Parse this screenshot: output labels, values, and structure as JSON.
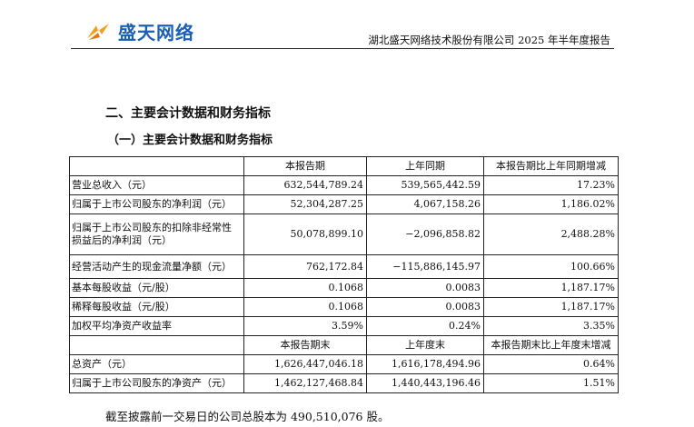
{
  "header": {
    "logo_text": "盛天网络",
    "report_title": "湖北盛天网络技术股份有限公司 2025 年半年度报告"
  },
  "section_title": "二、主要会计数据和财务指标",
  "subsection_title": "（一）主要会计数据和财务指标",
  "table": {
    "header1": [
      "",
      "本报告期",
      "上年同期",
      "本报告期比上年同期增减"
    ],
    "rows1": [
      {
        "label": "营业总收入（元）",
        "current": "632,544,789.24",
        "prior": "539,565,442.59",
        "change": "17.23%"
      },
      {
        "label": "归属于上市公司股东的净利润（元）",
        "current": "52,304,287.25",
        "prior": "4,067,158.26",
        "change": "1,186.02%"
      },
      {
        "label": "归属于上市公司股东的扣除非经常性损益后的净利润（元）",
        "current": "50,078,899.10",
        "prior": "−2,096,858.82",
        "change": "2,488.28%"
      },
      {
        "label": "经营活动产生的现金流量净额（元）",
        "current": "762,172.84",
        "prior": "−115,886,145.97",
        "change": "100.66%"
      },
      {
        "label": "基本每股收益（元/股）",
        "current": "0.1068",
        "prior": "0.0083",
        "change": "1,187.17%"
      },
      {
        "label": "稀释每股收益（元/股）",
        "current": "0.1068",
        "prior": "0.0083",
        "change": "1,187.17%"
      },
      {
        "label": "加权平均净资产收益率",
        "current": "3.59%",
        "prior": "0.24%",
        "change": "3.35%"
      }
    ],
    "header2": [
      "",
      "本报告期末",
      "上年度末",
      "本报告期末比上年度末增减"
    ],
    "rows2": [
      {
        "label": "总资产（元）",
        "current": "1,626,447,046.18",
        "prior": "1,616,178,494.96",
        "change": "0.64%"
      },
      {
        "label": "归属于上市公司股东的净资产（元）",
        "current": "1,462,127,468.84",
        "prior": "1,440,443,196.46",
        "change": "1.51%"
      }
    ]
  },
  "footnote": "截至披露前一交易日的公司总股本为 490,510,076 股。"
}
